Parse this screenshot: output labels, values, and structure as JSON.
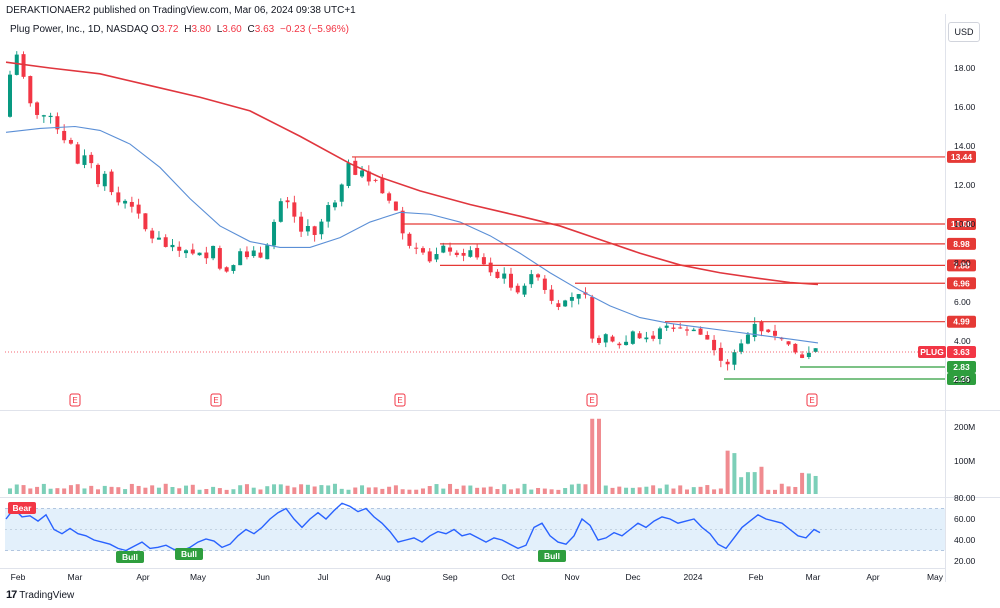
{
  "header": {
    "publisher": "DERAKTIONAER2 published on TradingView.com, Mar 06, 2024 09:38 UTC+1",
    "symbol": "Plug Power, Inc., 1D, NASDAQ",
    "ohlc": [
      {
        "label": "O",
        "value": "3.72"
      },
      {
        "label": "H",
        "value": "3.80"
      },
      {
        "label": "L",
        "value": "3.60"
      },
      {
        "label": "C",
        "value": "3.63"
      }
    ],
    "change": "−0.23 (−5.96%)",
    "currency": "USD"
  },
  "footer": {
    "brand": "TradingView",
    "logo": "tv-logo-icon"
  },
  "colors": {
    "up": "#089981",
    "down": "#f23645",
    "sma_fast": "#5b8fd6",
    "sma_slow": "#e0363e",
    "level_line": "#e53935",
    "support_line": "#2e9e3e",
    "rsi_line": "#2962ff",
    "rsi_band": "#e3f0fb"
  },
  "chart_data": {
    "type": "candlestick",
    "price_axis": {
      "ticks": [
        "18.00",
        "16.00",
        "14.00",
        "12.00",
        "10.00",
        "8.00",
        "6.00",
        "4.00",
        "2.00"
      ]
    },
    "x_axis": {
      "ticks": [
        "Feb",
        "Mar",
        "Apr",
        "May",
        "Jun",
        "Jul",
        "Aug",
        "Sep",
        "Oct",
        "Nov",
        "Dec",
        "2024",
        "Feb",
        "Mar",
        "Apr",
        "May"
      ]
    },
    "resistance_levels": [
      "13.44",
      "10.00",
      "8.98",
      "7.88",
      "6.96",
      "4.99"
    ],
    "support_levels": [
      "2.83",
      "2.26"
    ],
    "last_price": {
      "symbol": "PLUG",
      "value": "3.63"
    },
    "earnings_markers": [
      "E",
      "E",
      "E",
      "E",
      "E"
    ],
    "volume_axis": {
      "ticks": [
        "200M",
        "100M"
      ]
    },
    "rsi_axis": {
      "ticks": [
        "80.00",
        "60.00",
        "40.00",
        "20.00"
      ]
    },
    "rsi_signals": [
      {
        "label": "Bear"
      },
      {
        "label": "Bull"
      },
      {
        "label": "Bull"
      },
      {
        "label": "Bull"
      }
    ],
    "price_path": [
      [
        0,
        15.5
      ],
      [
        6,
        16.8
      ],
      [
        10,
        17.5
      ],
      [
        15,
        18.3
      ],
      [
        20,
        19.0
      ],
      [
        25,
        17.4
      ],
      [
        30,
        16.3
      ],
      [
        36,
        15.8
      ],
      [
        42,
        15.2
      ],
      [
        48,
        16.0
      ],
      [
        52,
        15.5
      ],
      [
        58,
        14.9
      ],
      [
        64,
        14.2
      ],
      [
        70,
        14.7
      ],
      [
        75,
        13.2
      ],
      [
        82,
        13.0
      ],
      [
        88,
        13.9
      ],
      [
        94,
        12.8
      ],
      [
        100,
        11.9
      ],
      [
        106,
        12.6
      ],
      [
        112,
        11.7
      ],
      [
        118,
        11.0
      ],
      [
        124,
        11.5
      ],
      [
        130,
        10.6
      ],
      [
        136,
        11.2
      ],
      [
        142,
        10.1
      ],
      [
        148,
        9.6
      ],
      [
        154,
        9.2
      ],
      [
        160,
        9.3
      ],
      [
        166,
        8.8
      ],
      [
        172,
        9.0
      ],
      [
        178,
        8.7
      ],
      [
        184,
        8.5
      ],
      [
        190,
        8.8
      ],
      [
        196,
        8.3
      ],
      [
        202,
        8.6
      ],
      [
        208,
        8.2
      ],
      [
        214,
        8.9
      ],
      [
        218,
        7.9
      ],
      [
        224,
        7.5
      ],
      [
        230,
        7.6
      ],
      [
        236,
        8.0
      ],
      [
        242,
        8.7
      ],
      [
        248,
        8.3
      ],
      [
        254,
        8.7
      ],
      [
        260,
        8.2
      ],
      [
        266,
        8.5
      ],
      [
        272,
        9.6
      ],
      [
        278,
        10.6
      ],
      [
        284,
        11.5
      ],
      [
        290,
        11.0
      ],
      [
        296,
        10.3
      ],
      [
        302,
        9.6
      ],
      [
        308,
        10.0
      ],
      [
        314,
        9.3
      ],
      [
        320,
        9.8
      ],
      [
        326,
        10.6
      ],
      [
        332,
        11.3
      ],
      [
        338,
        11.0
      ],
      [
        344,
        12.3
      ],
      [
        350,
        13.2
      ],
      [
        356,
        12.5
      ],
      [
        362,
        12.9
      ],
      [
        368,
        12.0
      ],
      [
        374,
        12.6
      ],
      [
        380,
        11.8
      ],
      [
        386,
        11.4
      ],
      [
        392,
        11.1
      ],
      [
        398,
        10.6
      ],
      [
        403,
        9.6
      ],
      [
        408,
        9.0
      ],
      [
        414,
        8.7
      ],
      [
        420,
        8.8
      ],
      [
        426,
        8.4
      ],
      [
        432,
        8.0
      ],
      [
        438,
        8.5
      ],
      [
        444,
        8.9
      ],
      [
        450,
        8.6
      ],
      [
        456,
        8.5
      ],
      [
        462,
        8.2
      ],
      [
        468,
        8.6
      ],
      [
        474,
        8.7
      ],
      [
        480,
        8.1
      ],
      [
        486,
        7.9
      ],
      [
        492,
        7.5
      ],
      [
        498,
        7.2
      ],
      [
        504,
        7.6
      ],
      [
        510,
        6.9
      ],
      [
        516,
        6.4
      ],
      [
        522,
        6.6
      ],
      [
        528,
        7.0
      ],
      [
        534,
        7.6
      ],
      [
        540,
        7.2
      ],
      [
        546,
        6.6
      ],
      [
        552,
        6.1
      ],
      [
        558,
        5.7
      ],
      [
        564,
        5.9
      ],
      [
        570,
        6.4
      ],
      [
        576,
        6.1
      ],
      [
        582,
        6.6
      ],
      [
        588,
        6.3
      ],
      [
        594,
        3.8
      ],
      [
        600,
        3.9
      ],
      [
        606,
        4.4
      ],
      [
        612,
        4.0
      ],
      [
        618,
        3.9
      ],
      [
        624,
        3.6
      ],
      [
        630,
        4.3
      ],
      [
        636,
        4.6
      ],
      [
        642,
        4.0
      ],
      [
        648,
        4.2
      ],
      [
        654,
        4.1
      ],
      [
        660,
        4.6
      ],
      [
        666,
        4.9
      ],
      [
        672,
        4.5
      ],
      [
        678,
        4.8
      ],
      [
        684,
        4.6
      ],
      [
        690,
        4.5
      ],
      [
        696,
        4.6
      ],
      [
        702,
        4.3
      ],
      [
        708,
        4.1
      ],
      [
        714,
        3.6
      ],
      [
        720,
        3.2
      ],
      [
        726,
        2.5
      ],
      [
        732,
        3.2
      ],
      [
        738,
        3.6
      ],
      [
        744,
        4.0
      ],
      [
        750,
        4.4
      ],
      [
        756,
        4.9
      ],
      [
        762,
        4.5
      ],
      [
        768,
        4.5
      ],
      [
        774,
        4.3
      ],
      [
        780,
        4.2
      ],
      [
        786,
        4.0
      ],
      [
        792,
        3.7
      ],
      [
        798,
        3.3
      ],
      [
        804,
        3.1
      ],
      [
        810,
        3.4
      ],
      [
        816,
        3.63
      ]
    ],
    "sma_fast_path": [
      [
        6,
        14.7
      ],
      [
        40,
        14.9
      ],
      [
        75,
        15.0
      ],
      [
        100,
        14.8
      ],
      [
        130,
        14.1
      ],
      [
        160,
        12.9
      ],
      [
        190,
        11.3
      ],
      [
        220,
        9.9
      ],
      [
        250,
        9.1
      ],
      [
        280,
        8.8
      ],
      [
        310,
        8.8
      ],
      [
        340,
        9.3
      ],
      [
        370,
        10.1
      ],
      [
        400,
        10.6
      ],
      [
        430,
        10.5
      ],
      [
        460,
        10.1
      ],
      [
        490,
        9.4
      ],
      [
        520,
        8.5
      ],
      [
        550,
        7.5
      ],
      [
        580,
        6.6
      ],
      [
        610,
        5.8
      ],
      [
        640,
        5.2
      ],
      [
        670,
        4.9
      ],
      [
        700,
        4.7
      ],
      [
        730,
        4.5
      ],
      [
        760,
        4.3
      ],
      [
        790,
        4.1
      ],
      [
        818,
        3.9
      ]
    ],
    "sma_slow_path": [
      [
        6,
        18.3
      ],
      [
        50,
        18.0
      ],
      [
        100,
        17.7
      ],
      [
        150,
        17.1
      ],
      [
        200,
        16.5
      ],
      [
        250,
        15.8
      ],
      [
        300,
        14.5
      ],
      [
        350,
        13.1
      ],
      [
        380,
        12.4
      ],
      [
        420,
        11.7
      ],
      [
        470,
        11.0
      ],
      [
        520,
        10.4
      ],
      [
        560,
        9.9
      ],
      [
        600,
        9.2
      ],
      [
        640,
        8.5
      ],
      [
        680,
        7.9
      ],
      [
        720,
        7.5
      ],
      [
        760,
        7.2
      ],
      [
        790,
        7.0
      ],
      [
        818,
        6.9
      ]
    ],
    "rsi_path": [
      [
        6,
        60
      ],
      [
        14,
        70
      ],
      [
        22,
        62
      ],
      [
        30,
        63
      ],
      [
        38,
        58
      ],
      [
        46,
        64
      ],
      [
        54,
        50
      ],
      [
        62,
        46
      ],
      [
        70,
        51
      ],
      [
        78,
        46
      ],
      [
        86,
        44
      ],
      [
        94,
        40
      ],
      [
        102,
        38
      ],
      [
        110,
        36
      ],
      [
        118,
        32
      ],
      [
        126,
        30
      ],
      [
        134,
        34
      ],
      [
        142,
        38
      ],
      [
        150,
        32
      ],
      [
        158,
        33
      ],
      [
        166,
        35
      ],
      [
        174,
        31
      ],
      [
        182,
        30
      ],
      [
        190,
        33
      ],
      [
        198,
        38
      ],
      [
        206,
        41
      ],
      [
        214,
        39
      ],
      [
        222,
        33
      ],
      [
        230,
        36
      ],
      [
        238,
        44
      ],
      [
        246,
        50
      ],
      [
        254,
        46
      ],
      [
        262,
        52
      ],
      [
        270,
        60
      ],
      [
        278,
        66
      ],
      [
        286,
        70
      ],
      [
        294,
        60
      ],
      [
        302,
        52
      ],
      [
        310,
        60
      ],
      [
        318,
        66
      ],
      [
        326,
        60
      ],
      [
        334,
        68
      ],
      [
        342,
        75
      ],
      [
        350,
        72
      ],
      [
        358,
        67
      ],
      [
        366,
        70
      ],
      [
        374,
        62
      ],
      [
        382,
        56
      ],
      [
        390,
        48
      ],
      [
        398,
        38
      ],
      [
        406,
        40
      ],
      [
        414,
        42
      ],
      [
        422,
        38
      ],
      [
        430,
        44
      ],
      [
        438,
        48
      ],
      [
        446,
        46
      ],
      [
        454,
        50
      ],
      [
        462,
        44
      ],
      [
        470,
        46
      ],
      [
        478,
        42
      ],
      [
        486,
        38
      ],
      [
        494,
        42
      ],
      [
        502,
        40
      ],
      [
        510,
        36
      ],
      [
        518,
        32
      ],
      [
        526,
        35
      ],
      [
        534,
        52
      ],
      [
        542,
        56
      ],
      [
        550,
        44
      ],
      [
        558,
        38
      ],
      [
        566,
        36
      ],
      [
        574,
        44
      ],
      [
        582,
        60
      ],
      [
        590,
        54
      ],
      [
        598,
        40
      ],
      [
        606,
        42
      ],
      [
        614,
        47
      ],
      [
        622,
        44
      ],
      [
        630,
        50
      ],
      [
        638,
        56
      ],
      [
        646,
        52
      ],
      [
        654,
        58
      ],
      [
        662,
        62
      ],
      [
        670,
        60
      ],
      [
        678,
        56
      ],
      [
        686,
        58
      ],
      [
        694,
        60
      ],
      [
        702,
        52
      ],
      [
        710,
        46
      ],
      [
        718,
        36
      ],
      [
        726,
        32
      ],
      [
        734,
        42
      ],
      [
        742,
        52
      ],
      [
        750,
        58
      ],
      [
        758,
        64
      ],
      [
        766,
        60
      ],
      [
        774,
        58
      ],
      [
        782,
        56
      ],
      [
        790,
        50
      ],
      [
        798,
        44
      ],
      [
        806,
        42
      ],
      [
        814,
        50
      ],
      [
        820,
        47
      ]
    ]
  }
}
